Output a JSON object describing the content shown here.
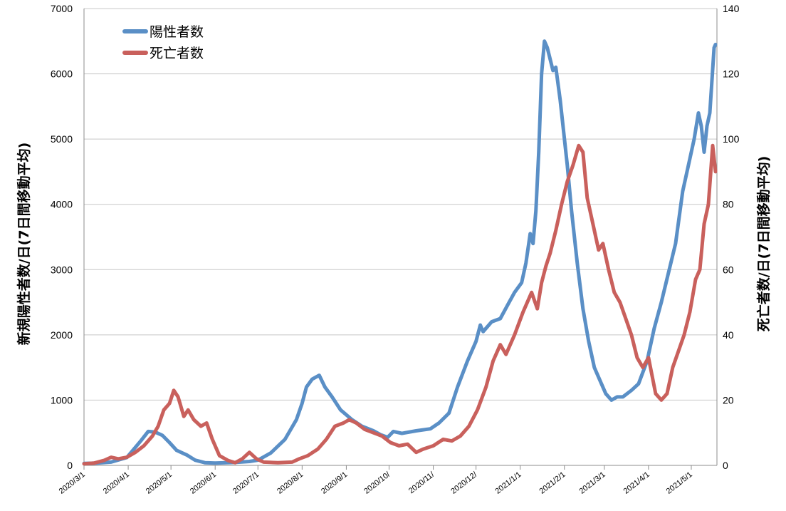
{
  "chart_data": {
    "type": "line",
    "title": "",
    "ylabel": "新規陽性者数/日(7日間移動平均)",
    "y2label": "死亡者数/日(7日間移動平均)",
    "ylim": [
      0,
      7000
    ],
    "y2lim": [
      0,
      140
    ],
    "yticks": [
      "0",
      "1000",
      "2000",
      "3000",
      "4000",
      "5000",
      "6000",
      "7000"
    ],
    "y2ticks": [
      "0",
      "20",
      "40",
      "60",
      "80",
      "100",
      "120",
      "140"
    ],
    "xticks": [
      "2020/3/1",
      "2020/4/1",
      "2020/5/1",
      "2020/6/1",
      "2020/7/1",
      "2020/8/1",
      "2020/9/1",
      "2020/10/",
      "2020/11/",
      "2020/12/",
      "2021/1/1",
      "2021/2/1",
      "2021/3/1",
      "2021/4/1",
      "2021/5/1"
    ],
    "grid": true,
    "legend_position": "top-left",
    "series": [
      {
        "name": "陽性者数",
        "axis": "left",
        "color": "#5a8fc6",
        "points": [
          [
            "2020-03-01",
            30
          ],
          [
            "2020-03-10",
            35
          ],
          [
            "2020-03-20",
            50
          ],
          [
            "2020-03-31",
            120
          ],
          [
            "2020-04-05",
            250
          ],
          [
            "2020-04-10",
            380
          ],
          [
            "2020-04-15",
            520
          ],
          [
            "2020-04-20",
            510
          ],
          [
            "2020-04-25",
            460
          ],
          [
            "2020-04-30",
            350
          ],
          [
            "2020-05-05",
            230
          ],
          [
            "2020-05-12",
            160
          ],
          [
            "2020-05-18",
            80
          ],
          [
            "2020-05-25",
            40
          ],
          [
            "2020-06-01",
            35
          ],
          [
            "2020-06-15",
            45
          ],
          [
            "2020-06-25",
            60
          ],
          [
            "2020-07-01",
            80
          ],
          [
            "2020-07-10",
            190
          ],
          [
            "2020-07-20",
            400
          ],
          [
            "2020-07-28",
            700
          ],
          [
            "2020-08-01",
            950
          ],
          [
            "2020-08-04",
            1200
          ],
          [
            "2020-08-08",
            1320
          ],
          [
            "2020-08-13",
            1380
          ],
          [
            "2020-08-17",
            1200
          ],
          [
            "2020-08-22",
            1050
          ],
          [
            "2020-08-28",
            850
          ],
          [
            "2020-09-05",
            700
          ],
          [
            "2020-09-12",
            600
          ],
          [
            "2020-09-20",
            530
          ],
          [
            "2020-09-25",
            470
          ],
          [
            "2020-09-30",
            430
          ],
          [
            "2020-10-04",
            520
          ],
          [
            "2020-10-10",
            490
          ],
          [
            "2020-10-20",
            530
          ],
          [
            "2020-10-30",
            560
          ],
          [
            "2020-11-05",
            650
          ],
          [
            "2020-11-12",
            800
          ],
          [
            "2020-11-18",
            1200
          ],
          [
            "2020-11-25",
            1600
          ],
          [
            "2020-12-01",
            1900
          ],
          [
            "2020-12-04",
            2150
          ],
          [
            "2020-12-06",
            2050
          ],
          [
            "2020-12-12",
            2200
          ],
          [
            "2020-12-18",
            2250
          ],
          [
            "2020-12-23",
            2450
          ],
          [
            "2020-12-28",
            2650
          ],
          [
            "2021-01-02",
            2800
          ],
          [
            "2021-01-05",
            3100
          ],
          [
            "2021-01-08",
            3550
          ],
          [
            "2021-01-10",
            3400
          ],
          [
            "2021-01-12",
            3900
          ],
          [
            "2021-01-14",
            4800
          ],
          [
            "2021-01-16",
            6000
          ],
          [
            "2021-01-18",
            6500
          ],
          [
            "2021-01-20",
            6400
          ],
          [
            "2021-01-24",
            6050
          ],
          [
            "2021-01-26",
            6100
          ],
          [
            "2021-01-29",
            5600
          ],
          [
            "2021-02-03",
            4600
          ],
          [
            "2021-02-06",
            3900
          ],
          [
            "2021-02-10",
            3100
          ],
          [
            "2021-02-14",
            2400
          ],
          [
            "2021-02-18",
            1900
          ],
          [
            "2021-02-22",
            1500
          ],
          [
            "2021-02-26",
            1300
          ],
          [
            "2021-03-02",
            1100
          ],
          [
            "2021-03-06",
            1000
          ],
          [
            "2021-03-10",
            1050
          ],
          [
            "2021-03-14",
            1050
          ],
          [
            "2021-03-20",
            1150
          ],
          [
            "2021-03-25",
            1250
          ],
          [
            "2021-03-31",
            1600
          ],
          [
            "2021-04-05",
            2100
          ],
          [
            "2021-04-10",
            2500
          ],
          [
            "2021-04-15",
            2950
          ],
          [
            "2021-04-20",
            3400
          ],
          [
            "2021-04-25",
            4200
          ],
          [
            "2021-04-30",
            4700
          ],
          [
            "2021-05-03",
            5000
          ],
          [
            "2021-05-06",
            5400
          ],
          [
            "2021-05-08",
            5200
          ],
          [
            "2021-05-10",
            4800
          ],
          [
            "2021-05-12",
            5200
          ],
          [
            "2021-05-14",
            5400
          ],
          [
            "2021-05-17",
            6400
          ],
          [
            "2021-05-18",
            6450
          ]
        ]
      },
      {
        "name": "死亡者数",
        "axis": "right",
        "color": "#c9605c",
        "points": [
          [
            "2020-03-01",
            0.5
          ],
          [
            "2020-03-08",
            0.7
          ],
          [
            "2020-03-15",
            1.5
          ],
          [
            "2020-03-20",
            2.5
          ],
          [
            "2020-03-25",
            2
          ],
          [
            "2020-03-31",
            2.5
          ],
          [
            "2020-04-06",
            4
          ],
          [
            "2020-04-12",
            6
          ],
          [
            "2020-04-18",
            9
          ],
          [
            "2020-04-22",
            12
          ],
          [
            "2020-04-26",
            17
          ],
          [
            "2020-04-30",
            19
          ],
          [
            "2020-05-03",
            23
          ],
          [
            "2020-05-06",
            21
          ],
          [
            "2020-05-10",
            15
          ],
          [
            "2020-05-13",
            17
          ],
          [
            "2020-05-17",
            14
          ],
          [
            "2020-05-22",
            12
          ],
          [
            "2020-05-26",
            13
          ],
          [
            "2020-05-30",
            8
          ],
          [
            "2020-06-04",
            3
          ],
          [
            "2020-06-10",
            1.5
          ],
          [
            "2020-06-15",
            0.8
          ],
          [
            "2020-06-20",
            2
          ],
          [
            "2020-06-25",
            4
          ],
          [
            "2020-06-30",
            2
          ],
          [
            "2020-07-05",
            1
          ],
          [
            "2020-07-15",
            0.8
          ],
          [
            "2020-07-25",
            1
          ],
          [
            "2020-07-30",
            2
          ],
          [
            "2020-08-05",
            3
          ],
          [
            "2020-08-12",
            5
          ],
          [
            "2020-08-18",
            8
          ],
          [
            "2020-08-24",
            12
          ],
          [
            "2020-08-30",
            13
          ],
          [
            "2020-09-03",
            14
          ],
          [
            "2020-09-08",
            13
          ],
          [
            "2020-09-14",
            11
          ],
          [
            "2020-09-20",
            10
          ],
          [
            "2020-09-26",
            9
          ],
          [
            "2020-10-02",
            7
          ],
          [
            "2020-10-08",
            6
          ],
          [
            "2020-10-14",
            6.5
          ],
          [
            "2020-10-20",
            4
          ],
          [
            "2020-10-25",
            5
          ],
          [
            "2020-11-01",
            6
          ],
          [
            "2020-11-08",
            8
          ],
          [
            "2020-11-14",
            7.5
          ],
          [
            "2020-11-20",
            9
          ],
          [
            "2020-11-26",
            12
          ],
          [
            "2020-12-02",
            17
          ],
          [
            "2020-12-08",
            24
          ],
          [
            "2020-12-13",
            32
          ],
          [
            "2020-12-18",
            37
          ],
          [
            "2020-12-22",
            34
          ],
          [
            "2020-12-28",
            40
          ],
          [
            "2021-01-03",
            47
          ],
          [
            "2021-01-09",
            53
          ],
          [
            "2021-01-13",
            48
          ],
          [
            "2021-01-16",
            56
          ],
          [
            "2021-01-19",
            61
          ],
          [
            "2021-01-22",
            65
          ],
          [
            "2021-01-26",
            72
          ],
          [
            "2021-01-30",
            80
          ],
          [
            "2021-02-03",
            87
          ],
          [
            "2021-02-07",
            92
          ],
          [
            "2021-02-11",
            98
          ],
          [
            "2021-02-14",
            96
          ],
          [
            "2021-02-17",
            82
          ],
          [
            "2021-02-21",
            74
          ],
          [
            "2021-02-25",
            66
          ],
          [
            "2021-02-28",
            68
          ],
          [
            "2021-03-04",
            60
          ],
          [
            "2021-03-08",
            53
          ],
          [
            "2021-03-12",
            50
          ],
          [
            "2021-03-16",
            45
          ],
          [
            "2021-03-20",
            40
          ],
          [
            "2021-03-24",
            33
          ],
          [
            "2021-03-28",
            30
          ],
          [
            "2021-04-01",
            33
          ],
          [
            "2021-04-06",
            22
          ],
          [
            "2021-04-10",
            20
          ],
          [
            "2021-04-14",
            22
          ],
          [
            "2021-04-18",
            30
          ],
          [
            "2021-04-22",
            35
          ],
          [
            "2021-04-26",
            40
          ],
          [
            "2021-04-30",
            47
          ],
          [
            "2021-05-04",
            57
          ],
          [
            "2021-05-07",
            60
          ],
          [
            "2021-05-10",
            74
          ],
          [
            "2021-05-13",
            80
          ],
          [
            "2021-05-16",
            98
          ],
          [
            "2021-05-18",
            90
          ]
        ]
      }
    ]
  }
}
